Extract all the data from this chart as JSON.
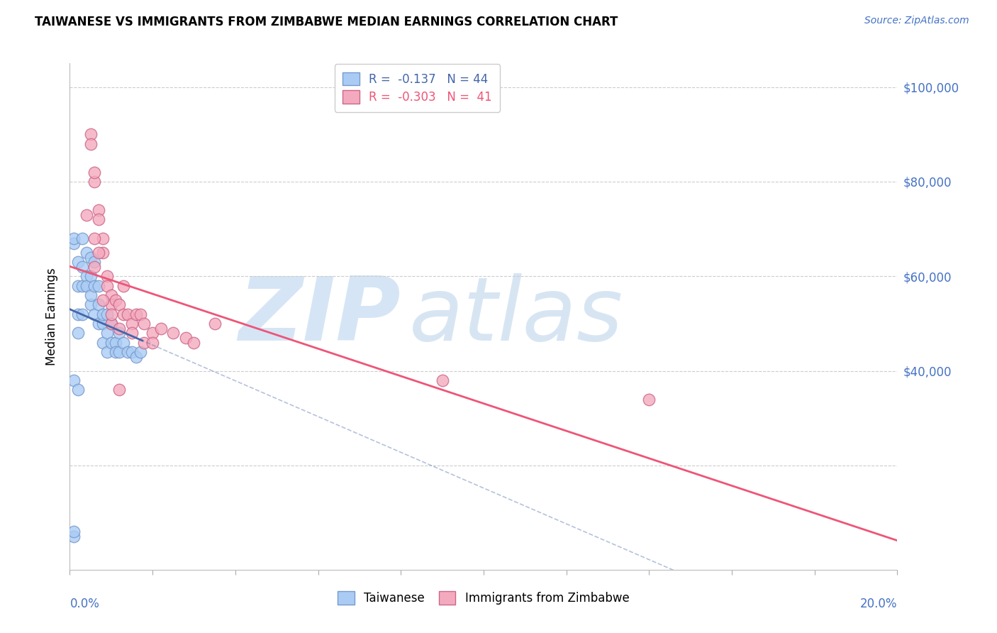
{
  "title": "TAIWANESE VS IMMIGRANTS FROM ZIMBABWE MEDIAN EARNINGS CORRELATION CHART",
  "source": "Source: ZipAtlas.com",
  "ylabel": "Median Earnings",
  "xlim": [
    0.0,
    0.2
  ],
  "ylim": [
    -2000,
    105000
  ],
  "yticks": [
    0,
    20000,
    40000,
    60000,
    80000,
    100000
  ],
  "right_ytick_labels": [
    "",
    "",
    "$40,000",
    "$60,000",
    "$80,000",
    "$100,000"
  ],
  "taiwanese_color": "#aaccf4",
  "zimbabwe_color": "#f4aabe",
  "taiwanese_edge": "#7799cc",
  "zimbabwe_edge": "#cc6688",
  "trendline_blue": "#4466aa",
  "trendline_pink": "#ee5577",
  "watermark_zip_color": "#c0d8f0",
  "watermark_atlas_color": "#b0cce8",
  "background_color": "#ffffff",
  "grid_color": "#cccccc",
  "axis_color": "#4472c4",
  "legend_r_blue": "R =  -0.137   N = 44",
  "legend_r_pink": "R =  -0.303   N =  41",
  "legend_bottom_1": "Taiwanese",
  "legend_bottom_2": "Immigrants from Zimbabwe",
  "label_0pct": "0.0%",
  "label_20pct": "20.0%",
  "title_fontsize": 12,
  "source_fontsize": 10,
  "tick_fontsize": 12,
  "legend_fontsize": 12,
  "tw_x": [
    0.001,
    0.001,
    0.001,
    0.001,
    0.002,
    0.002,
    0.002,
    0.002,
    0.003,
    0.003,
    0.003,
    0.003,
    0.004,
    0.004,
    0.004,
    0.005,
    0.005,
    0.005,
    0.005,
    0.006,
    0.006,
    0.006,
    0.007,
    0.007,
    0.007,
    0.008,
    0.008,
    0.008,
    0.009,
    0.009,
    0.009,
    0.01,
    0.01,
    0.011,
    0.011,
    0.012,
    0.012,
    0.013,
    0.014,
    0.015,
    0.016,
    0.017,
    0.001,
    0.002
  ],
  "tw_y": [
    5000,
    6000,
    67000,
    68000,
    48000,
    52000,
    58000,
    63000,
    52000,
    58000,
    62000,
    68000,
    60000,
    65000,
    58000,
    54000,
    56000,
    60000,
    64000,
    58000,
    52000,
    63000,
    54000,
    50000,
    58000,
    50000,
    52000,
    46000,
    52000,
    48000,
    44000,
    46000,
    50000,
    46000,
    44000,
    48000,
    44000,
    46000,
    44000,
    44000,
    43000,
    44000,
    38000,
    36000
  ],
  "zim_x": [
    0.005,
    0.005,
    0.006,
    0.006,
    0.007,
    0.007,
    0.008,
    0.008,
    0.009,
    0.009,
    0.01,
    0.01,
    0.011,
    0.012,
    0.013,
    0.013,
    0.014,
    0.015,
    0.016,
    0.017,
    0.018,
    0.02,
    0.022,
    0.025,
    0.028,
    0.03,
    0.035,
    0.09,
    0.14,
    0.006,
    0.007,
    0.01,
    0.012,
    0.015,
    0.018,
    0.02,
    0.004,
    0.006,
    0.008,
    0.01,
    0.012
  ],
  "zim_y": [
    90000,
    88000,
    80000,
    82000,
    74000,
    72000,
    65000,
    68000,
    60000,
    58000,
    56000,
    54000,
    55000,
    54000,
    58000,
    52000,
    52000,
    50000,
    52000,
    52000,
    50000,
    48000,
    49000,
    48000,
    47000,
    46000,
    50000,
    38000,
    34000,
    62000,
    65000,
    50000,
    49000,
    48000,
    46000,
    46000,
    73000,
    68000,
    55000,
    52000,
    36000
  ]
}
